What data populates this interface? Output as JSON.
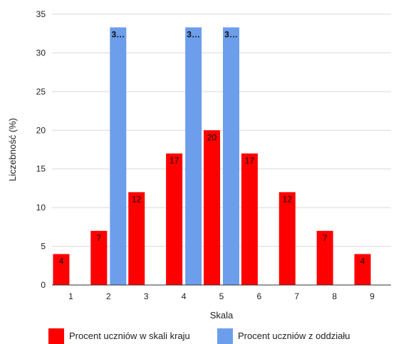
{
  "chart_data": {
    "type": "bar",
    "title": "",
    "xlabel": "Skala",
    "ylabel": "Liczebność (%)",
    "categories": [
      "1",
      "2",
      "3",
      "4",
      "5",
      "6",
      "7",
      "8",
      "9"
    ],
    "ylim": [
      0,
      35
    ],
    "yticks": [
      "0",
      "5",
      "10",
      "15",
      "20",
      "25",
      "30",
      "35"
    ],
    "grid": true,
    "legend_position": "bottom",
    "series": [
      {
        "name": "Procent uczniów w skali kraju",
        "color": "#ff0000",
        "values": [
          4,
          7,
          12,
          17,
          20,
          17,
          12,
          7,
          4
        ],
        "labels": [
          "4",
          "7",
          "12",
          "17",
          "20",
          "17",
          "12",
          "7",
          "4"
        ]
      },
      {
        "name": "Procent uczniów z oddziału",
        "color": "#6d9eeb",
        "values": [
          0,
          33.3,
          0,
          33.3,
          33.3,
          0,
          0,
          0,
          0
        ],
        "labels": [
          "",
          "3…",
          "",
          "3…",
          "3…",
          "",
          "",
          "",
          ""
        ]
      }
    ]
  }
}
